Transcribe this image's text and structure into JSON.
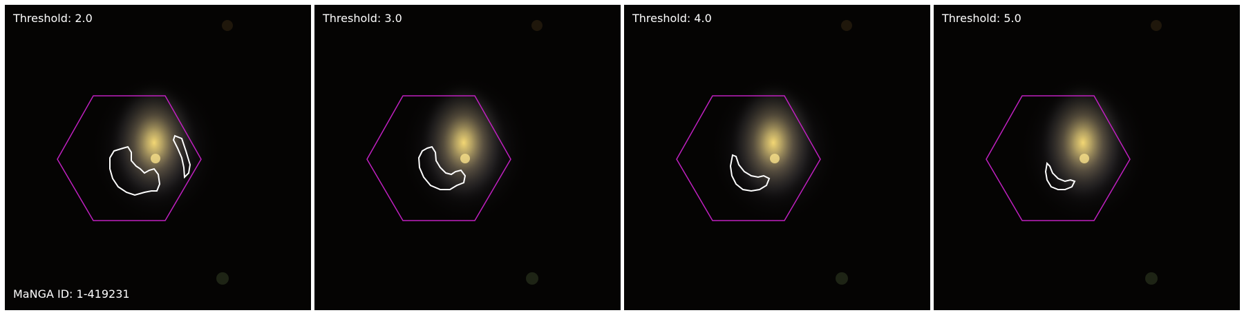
{
  "panels": [
    {
      "threshold_label": "Threshold: 2.0"
    },
    {
      "threshold_label": "Threshold: 3.0"
    },
    {
      "threshold_label": "Threshold: 4.0"
    },
    {
      "threshold_label": "Threshold: 5.0"
    }
  ],
  "manga_id_label": "MaNGA ID: 1-419231",
  "colors": {
    "background": "#050403",
    "hexagon": "#c020c0",
    "contour": "#ffffff",
    "galaxy_core": "#f0d070",
    "separator": "#ffffff"
  }
}
